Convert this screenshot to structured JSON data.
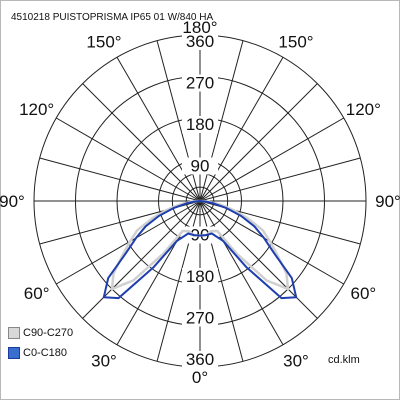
{
  "title": "4510218 PUISTOPRISMA IP65 01 W/840 HA",
  "units": "cd.klm",
  "legend": [
    {
      "label": "C90-C270",
      "color": "#d8d8d8",
      "border": "#888888"
    },
    {
      "label": "C0-C180",
      "color": "#3a6fd0",
      "border": "#1a3a9c"
    }
  ],
  "chart_data": {
    "type": "polar",
    "radial_ticks": [
      90,
      180,
      270,
      360
    ],
    "radial_max": 360,
    "angle_labels": {
      "top": "180°",
      "bottom": "0°",
      "left_side": [
        "150°",
        "120°",
        "90°",
        "60°",
        "30°"
      ],
      "right_side": [
        "150°",
        "120°",
        "90°",
        "60°",
        "30°"
      ]
    },
    "series": [
      {
        "name": "C90-C270",
        "color": "#d0d0d0",
        "gamma": [
          0,
          10,
          20,
          30,
          35,
          40,
          45,
          50,
          55,
          60,
          65,
          70,
          75,
          80,
          85,
          90
        ],
        "intensity": [
          75,
          75,
          70,
          75,
          140,
          225,
          270,
          245,
          205,
          175,
          150,
          110,
          75,
          45,
          20,
          5
        ]
      },
      {
        "name": "C0-C180",
        "color": "#1f3fae",
        "gamma": [
          0,
          10,
          20,
          30,
          35,
          40,
          45,
          50,
          55,
          60,
          65,
          70,
          75,
          80,
          85,
          90
        ],
        "intensity": [
          75,
          75,
          75,
          100,
          175,
          275,
          295,
          260,
          195,
          160,
          130,
          95,
          60,
          30,
          12,
          0
        ]
      }
    ]
  }
}
